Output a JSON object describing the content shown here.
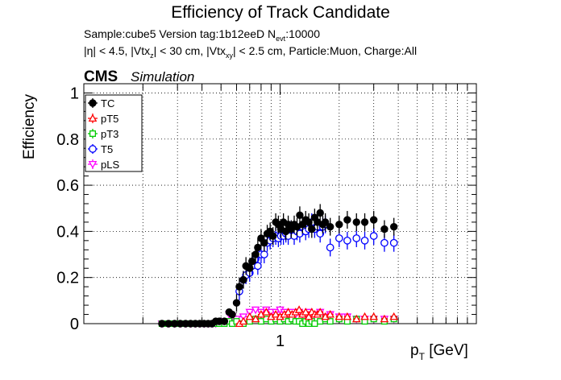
{
  "chart_data": {
    "type": "scatter",
    "title": "Efficiency of Track Candidate",
    "info_line1": {
      "sample": "Sample:cube5   Version tag:1b12eeD  N",
      "sub": "evt",
      "rest": ":10000"
    },
    "info_line2_parts": [
      "|η| < 4.5, |Vtx",
      "z",
      "| < 30 cm, |Vtx",
      "xy",
      "| < 2.5 cm, Particle:Muon, Charge:All"
    ],
    "experiment": "CMS",
    "tag": "Simulation",
    "ylabel": "Efficiency",
    "xlabel_main": "p",
    "xlabel_sub": "T",
    "xlabel_unit": " [GeV]",
    "xscale": "log",
    "xlim": [
      0.1,
      10
    ],
    "ylim": [
      0,
      1.04
    ],
    "yticks": [
      0,
      0.2,
      0.4,
      0.6,
      0.8,
      1
    ],
    "ytick_labels": [
      "0",
      "0.2",
      "0.4",
      "0.6",
      "0.8",
      "1"
    ],
    "xticks": [
      1
    ],
    "xtick_labels": [
      "1"
    ],
    "grid": true,
    "legend_position": "top-left",
    "series": [
      {
        "name": "TC",
        "color": "#000000",
        "marker": "filled-circle",
        "x": [
          0.25,
          0.27,
          0.29,
          0.31,
          0.33,
          0.35,
          0.37,
          0.39,
          0.41,
          0.43,
          0.45,
          0.47,
          0.49,
          0.52,
          0.55,
          0.57,
          0.6,
          0.62,
          0.65,
          0.67,
          0.7,
          0.72,
          0.75,
          0.77,
          0.8,
          0.83,
          0.86,
          0.89,
          0.92,
          0.95,
          0.98,
          1.01,
          1.04,
          1.07,
          1.1,
          1.14,
          1.18,
          1.22,
          1.26,
          1.3,
          1.35,
          1.4,
          1.45,
          1.5,
          1.55,
          1.6,
          1.65,
          1.7,
          1.8,
          2.0,
          2.2,
          2.45,
          2.7,
          3.0,
          3.4,
          3.8
        ],
        "y": [
          0,
          0,
          0,
          0,
          0,
          0,
          0,
          0,
          0,
          0,
          0,
          0.01,
          0.01,
          0.01,
          0.05,
          0.04,
          0.09,
          0.16,
          0.19,
          0.25,
          0.24,
          0.27,
          0.3,
          0.33,
          0.37,
          0.35,
          0.39,
          0.4,
          0.38,
          0.44,
          0.43,
          0.41,
          0.44,
          0.4,
          0.43,
          0.41,
          0.43,
          0.42,
          0.47,
          0.43,
          0.45,
          0.44,
          0.41,
          0.46,
          0.44,
          0.48,
          0.43,
          0.44,
          0.42,
          0.43,
          0.45,
          0.44,
          0.44,
          0.45,
          0.41,
          0.42
        ]
      },
      {
        "name": "pT5",
        "color": "#ff0000",
        "marker": "open-triangle",
        "x": [
          0.62,
          0.65,
          0.7,
          0.75,
          0.8,
          0.85,
          0.9,
          0.95,
          1.0,
          1.05,
          1.1,
          1.15,
          1.2,
          1.25,
          1.3,
          1.35,
          1.4,
          1.45,
          1.5,
          1.55,
          1.6,
          1.7,
          1.8,
          2.0,
          2.2,
          2.45,
          2.7,
          3.0,
          3.4,
          3.8
        ],
        "y": [
          0.0,
          0.01,
          0.03,
          0.02,
          0.04,
          0.05,
          0.03,
          0.04,
          0.03,
          0.04,
          0.05,
          0.04,
          0.05,
          0.06,
          0.04,
          0.05,
          0.03,
          0.05,
          0.04,
          0.04,
          0.05,
          0.03,
          0.04,
          0.03,
          0.03,
          0.02,
          0.03,
          0.03,
          0.02,
          0.03
        ]
      },
      {
        "name": "pT3",
        "color": "#00cc00",
        "marker": "open-square",
        "x": [
          0.25,
          0.27,
          0.29,
          0.31,
          0.33,
          0.35,
          0.37,
          0.39,
          0.41,
          0.43,
          0.45,
          0.47,
          0.49,
          0.52,
          0.55,
          0.57,
          0.6,
          0.65,
          0.7,
          0.75,
          0.8,
          0.85,
          0.9,
          0.95,
          1.0,
          1.05,
          1.1,
          1.15,
          1.2,
          1.25,
          1.3,
          1.35,
          1.4,
          1.45,
          1.5,
          1.6,
          1.7,
          1.8,
          2.0,
          2.2,
          2.45,
          2.7,
          3.0,
          3.4,
          3.8
        ],
        "y": [
          0,
          0,
          0,
          0,
          0,
          0,
          0,
          0,
          0,
          0,
          0,
          0,
          0,
          0,
          0.01,
          0.0,
          0.01,
          0.0,
          0.01,
          0.02,
          0.01,
          0.02,
          0.01,
          0.02,
          0.01,
          0.02,
          0.01,
          0.02,
          0.01,
          0.01,
          0.0,
          0.01,
          0.0,
          0.01,
          0.0,
          0.01,
          0.02,
          0.01,
          0.02,
          0.01,
          0.02,
          0.01,
          0.02,
          0.01,
          0.02
        ]
      },
      {
        "name": "T5",
        "color": "#0000ff",
        "marker": "open-circle",
        "x": [
          0.62,
          0.65,
          0.67,
          0.7,
          0.72,
          0.75,
          0.77,
          0.8,
          0.83,
          0.86,
          0.89,
          0.92,
          0.95,
          0.98,
          1.01,
          1.04,
          1.07,
          1.1,
          1.14,
          1.18,
          1.22,
          1.26,
          1.3,
          1.35,
          1.4,
          1.45,
          1.5,
          1.55,
          1.6,
          1.65,
          1.7,
          1.8,
          2.0,
          2.2,
          2.45,
          2.7,
          3.0,
          3.4,
          3.8
        ],
        "y": [
          0.14,
          0.19,
          0.21,
          0.22,
          0.25,
          0.28,
          0.25,
          0.3,
          0.3,
          0.35,
          0.36,
          0.37,
          0.38,
          0.37,
          0.38,
          0.38,
          0.39,
          0.38,
          0.41,
          0.38,
          0.4,
          0.39,
          0.42,
          0.4,
          0.41,
          0.44,
          0.41,
          0.42,
          0.39,
          0.42,
          0.43,
          0.33,
          0.37,
          0.36,
          0.37,
          0.36,
          0.38,
          0.35,
          0.35
        ]
      },
      {
        "name": "pLS",
        "color": "#ff00ff",
        "marker": "open-triangle-down",
        "x": [
          0.25,
          0.27,
          0.29,
          0.31,
          0.33,
          0.35,
          0.37,
          0.39,
          0.41,
          0.43,
          0.45,
          0.47,
          0.49,
          0.52,
          0.55,
          0.57,
          0.6,
          0.65,
          0.7,
          0.75,
          0.8,
          0.85,
          0.9,
          0.95,
          1.0,
          1.05,
          1.1,
          1.15,
          1.2,
          1.25,
          1.3,
          1.35,
          1.4,
          1.45,
          1.5,
          1.6,
          1.7,
          1.8,
          2.0,
          2.2,
          2.45,
          2.7,
          3.0,
          3.4,
          3.8
        ],
        "y": [
          0,
          0,
          0,
          0,
          0,
          0,
          0,
          0,
          0,
          0,
          0,
          0,
          0.01,
          0.01,
          0.04,
          0.03,
          0.02,
          0.03,
          0.05,
          0.06,
          0.05,
          0.06,
          0.05,
          0.05,
          0.06,
          0.05,
          0.04,
          0.05,
          0.04,
          0.05,
          0.04,
          0.04,
          0.05,
          0.04,
          0.04,
          0.05,
          0.03,
          0.04,
          0.03,
          0.03,
          0.02,
          0.02,
          0.02,
          0.02,
          0.02
        ]
      }
    ]
  }
}
